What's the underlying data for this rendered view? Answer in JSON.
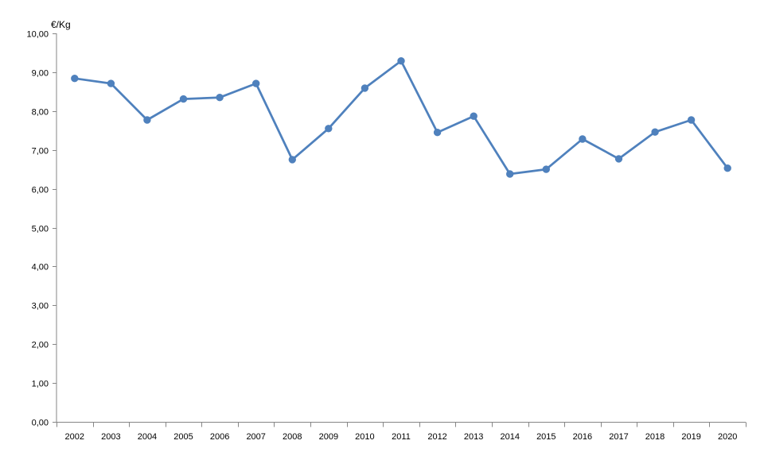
{
  "chart_data": {
    "type": "line",
    "title": "",
    "xlabel": "",
    "ylabel": "€/Kg",
    "ylim": [
      0,
      10
    ],
    "y_ticks": [
      0,
      1,
      2,
      3,
      4,
      5,
      6,
      7,
      8,
      9,
      10
    ],
    "y_tick_labels": [
      "0,00",
      "1,00",
      "2,00",
      "3,00",
      "4,00",
      "5,00",
      "6,00",
      "7,00",
      "8,00",
      "9,00",
      "10,00"
    ],
    "categories": [
      "2002",
      "2003",
      "2004",
      "2005",
      "2006",
      "2007",
      "2008",
      "2009",
      "2010",
      "2011",
      "2012",
      "2013",
      "2014",
      "2015",
      "2016",
      "2017",
      "2018",
      "2019",
      "2020"
    ],
    "series": [
      {
        "values": [
          8.84,
          8.71,
          7.77,
          8.31,
          8.35,
          8.71,
          6.75,
          7.55,
          8.59,
          9.29,
          7.45,
          7.87,
          6.38,
          6.5,
          7.28,
          6.77,
          7.46,
          7.77,
          6.53
        ],
        "color": "#4F81BD"
      }
    ],
    "grid": false,
    "legend": "none",
    "marker": "circle"
  }
}
